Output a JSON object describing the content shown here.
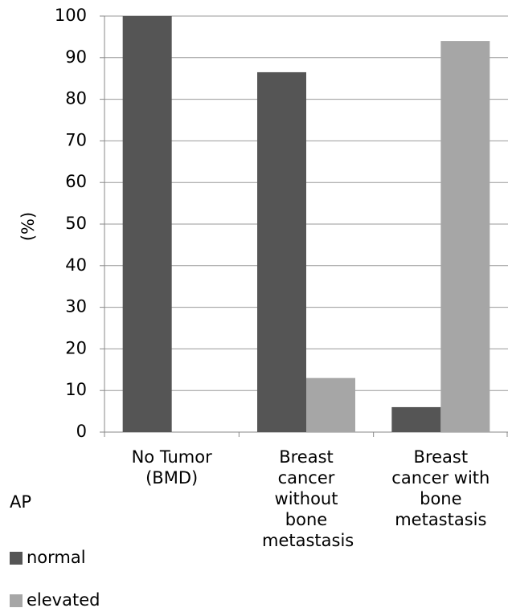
{
  "chart_data": {
    "type": "bar",
    "y_label": "(%)",
    "legend_title": "AP",
    "categories": [
      "No Tumor (BMD)",
      "Breast cancer without bone metastasis",
      "Breast cancer with bone metastasis"
    ],
    "series": [
      {
        "name": "normal",
        "color": "#555555",
        "values": [
          100,
          86.5,
          6
        ]
      },
      {
        "name": "elevated",
        "color": "#a6a6a6",
        "values": [
          0,
          13,
          94
        ]
      }
    ],
    "ylim": [
      0,
      100
    ],
    "yticks": [
      0,
      10,
      20,
      30,
      40,
      50,
      60,
      70,
      80,
      90,
      100
    ],
    "grid": true,
    "legend": "bottom-left"
  }
}
